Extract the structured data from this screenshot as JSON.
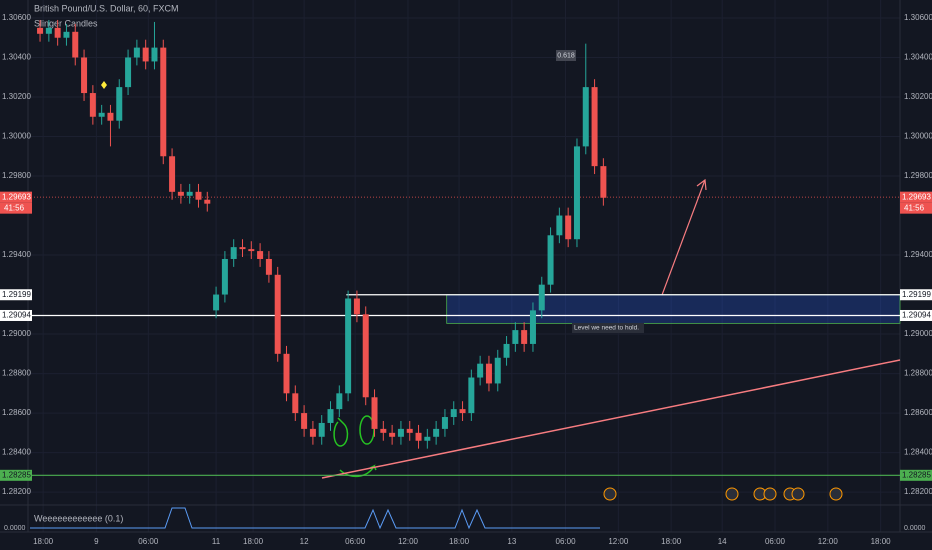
{
  "chart_data": {
    "type": "candlestick",
    "title": "British Pound/U.S. Dollar, 60, FXCM",
    "subtitle": "Slinger Candles",
    "indicator": {
      "name": "Weeeeeeeeeeee (0.1)",
      "axis_label": "0.0000"
    },
    "up_color": "#26a69a",
    "down_color": "#ef5350",
    "open": [
      1.3055,
      1.3052,
      1.3055,
      1.305,
      1.3053,
      1.304,
      1.3022,
      1.301,
      1.3012,
      1.3008,
      1.3025,
      1.304,
      1.3045,
      1.3038,
      1.3045,
      1.299,
      1.2972,
      1.297,
      1.2972,
      1.2968,
      1.2912,
      1.292,
      1.2938,
      1.2944,
      1.2943,
      1.2942,
      1.2938,
      1.293,
      1.289,
      1.287,
      1.286,
      1.2852,
      1.2848,
      1.2855,
      1.2862,
      1.287,
      1.2918,
      1.291,
      1.2868,
      1.2852,
      1.285,
      1.2848,
      1.2852,
      1.285,
      1.2846,
      1.2848,
      1.2852,
      1.2858,
      1.2862,
      1.286,
      1.2878,
      1.2885,
      1.2875,
      1.2888,
      1.2895,
      1.2902,
      1.2895,
      1.2912,
      1.2925,
      1.295,
      1.296,
      1.2948,
      1.2995,
      1.3025,
      1.2985
    ],
    "high": [
      1.3059,
      1.3059,
      1.3059,
      1.3057,
      1.3057,
      1.3044,
      1.3026,
      1.3016,
      1.3016,
      1.3029,
      1.3044,
      1.3049,
      1.3049,
      1.3058,
      1.3049,
      1.2994,
      1.2976,
      1.2976,
      1.2976,
      1.2972,
      1.2924,
      1.2942,
      1.2948,
      1.2948,
      1.2947,
      1.2946,
      1.2942,
      1.2934,
      1.2894,
      1.2874,
      1.2864,
      1.2856,
      1.2859,
      1.2866,
      1.2874,
      1.2922,
      1.2922,
      1.2914,
      1.2872,
      1.2856,
      1.2854,
      1.2856,
      1.2856,
      1.2854,
      1.2852,
      1.2856,
      1.2862,
      1.2866,
      1.2866,
      1.2882,
      1.2889,
      1.2889,
      1.2892,
      1.2899,
      1.2906,
      1.2906,
      1.2916,
      1.2929,
      1.2954,
      1.2964,
      1.2964,
      1.2999,
      1.3047,
      1.3029,
      1.2989
    ],
    "low": [
      1.3048,
      1.3048,
      1.3046,
      1.3046,
      1.3036,
      1.3018,
      1.3006,
      1.3006,
      1.2995,
      1.3004,
      1.3021,
      1.3036,
      1.3034,
      1.3034,
      1.2986,
      1.2968,
      1.2966,
      1.2966,
      1.2964,
      1.2962,
      1.2908,
      1.2916,
      1.2934,
      1.2939,
      1.2938,
      1.2934,
      1.2926,
      1.2886,
      1.2866,
      1.2856,
      1.2848,
      1.2844,
      1.2844,
      1.2851,
      1.2858,
      1.2866,
      1.2906,
      1.2864,
      1.2848,
      1.2846,
      1.2844,
      1.2844,
      1.2846,
      1.2842,
      1.2842,
      1.2844,
      1.2848,
      1.2854,
      1.2856,
      1.2856,
      1.2874,
      1.2871,
      1.2871,
      1.2884,
      1.2891,
      1.2891,
      1.2891,
      1.2908,
      1.2921,
      1.2946,
      1.2944,
      1.2944,
      1.2991,
      1.2981,
      1.2965
    ],
    "close": [
      1.3052,
      1.3055,
      1.305,
      1.3053,
      1.304,
      1.3022,
      1.301,
      1.3012,
      1.3008,
      1.3025,
      1.304,
      1.3045,
      1.3038,
      1.3045,
      1.299,
      1.2972,
      1.297,
      1.2972,
      1.2968,
      1.2966,
      1.292,
      1.2938,
      1.2944,
      1.2943,
      1.2942,
      1.2938,
      1.293,
      1.289,
      1.287,
      1.286,
      1.2852,
      1.2848,
      1.2855,
      1.2862,
      1.287,
      1.2918,
      1.291,
      1.2868,
      1.2852,
      1.285,
      1.2848,
      1.2852,
      1.285,
      1.2846,
      1.2848,
      1.2852,
      1.2858,
      1.2862,
      1.286,
      1.2878,
      1.2885,
      1.2875,
      1.2888,
      1.2895,
      1.2902,
      1.2895,
      1.2912,
      1.2925,
      1.295,
      1.296,
      1.2948,
      1.2995,
      1.3025,
      1.2985,
      1.2969
    ],
    "ylim": [
      1.2816,
      1.30691
    ],
    "yticks": [
      {
        "value": 1.306,
        "label": "1.30600"
      },
      {
        "value": 1.304,
        "label": "1.30400"
      },
      {
        "value": 1.302,
        "label": "1.30200"
      },
      {
        "value": 1.3,
        "label": "1.30000"
      },
      {
        "value": 1.298,
        "label": "1.29800"
      },
      {
        "value": 1.294,
        "label": "1.29400"
      },
      {
        "value": 1.29,
        "label": "1.29000"
      },
      {
        "value": 1.288,
        "label": "1.28800"
      },
      {
        "value": 1.286,
        "label": "1.28600"
      },
      {
        "value": 1.284,
        "label": "1.28400"
      },
      {
        "value": 1.282,
        "label": "1.28200"
      }
    ],
    "xlim": [
      -4.55,
      97.7
    ],
    "xticks": [
      {
        "value": 0.35,
        "label": "18:00"
      },
      {
        "value": 6.4,
        "label": "9"
      },
      {
        "value": 12.3,
        "label": "06:00"
      },
      {
        "value": 20,
        "label": "11"
      },
      {
        "value": 24.2,
        "label": "18:00"
      },
      {
        "value": 30,
        "label": "12"
      },
      {
        "value": 35.8,
        "label": "06:00"
      },
      {
        "value": 41.8,
        "label": "12:00"
      },
      {
        "value": 47.6,
        "label": "18:00"
      },
      {
        "value": 53.6,
        "label": "13"
      },
      {
        "value": 59.7,
        "label": "06:00"
      },
      {
        "value": 65.7,
        "label": "12:00"
      },
      {
        "value": 71.7,
        "label": "18:00"
      },
      {
        "value": 77.5,
        "label": "14"
      },
      {
        "value": 83.5,
        "label": "06:00"
      },
      {
        "value": 89.5,
        "label": "12:00"
      },
      {
        "value": 95.5,
        "label": "18:00"
      }
    ],
    "levels": [
      {
        "value": 1.29693,
        "label": "1.29693",
        "color": "#ef5350"
      },
      {
        "value": 1.29199,
        "label": "1.29199",
        "color": "#ffffff"
      },
      {
        "value": 1.29094,
        "label": "1.29094",
        "color": "#ffffff"
      },
      {
        "value": 1.28285,
        "label": "1.28285",
        "color": "#4caf50"
      }
    ],
    "countdown": "41:56",
    "zone": [
      1.29054,
      1.29199
    ],
    "annotations": [
      "0.618",
      "Level we need to hold."
    ]
  }
}
